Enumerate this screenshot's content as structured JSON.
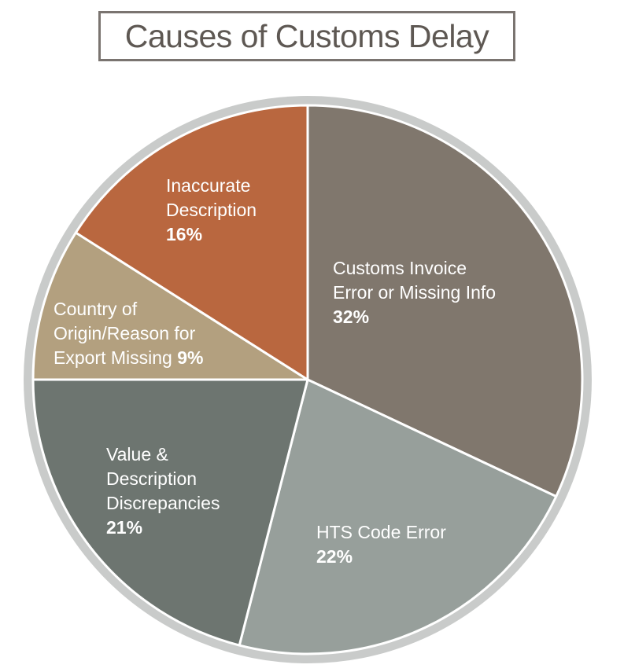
{
  "chart_data": {
    "type": "pie",
    "title": "Causes of Customs Delay",
    "slices": [
      {
        "lines": [
          "Customs Invoice",
          "Error or Missing Info"
        ],
        "value": 32,
        "value_label": "32%",
        "color": "#80776d"
      },
      {
        "lines": [
          "HTS Code Error"
        ],
        "value": 22,
        "value_label": "22%",
        "color": "#979f9b"
      },
      {
        "lines": [
          "Value &",
          "Description",
          "Discrepancies"
        ],
        "value": 21,
        "value_label": "21%",
        "color": "#6d7570"
      },
      {
        "lines": [
          "Country of",
          "Origin/Reason for",
          "Export Missing"
        ],
        "value": 9,
        "value_label": "9%",
        "color": "#b3a07f"
      },
      {
        "lines": [
          "Inaccurate",
          "Description"
        ],
        "value": 16,
        "value_label": "16%",
        "color": "#b9673f"
      }
    ],
    "rim_color": "#c9cbca",
    "separator_color": "#ffffff"
  }
}
